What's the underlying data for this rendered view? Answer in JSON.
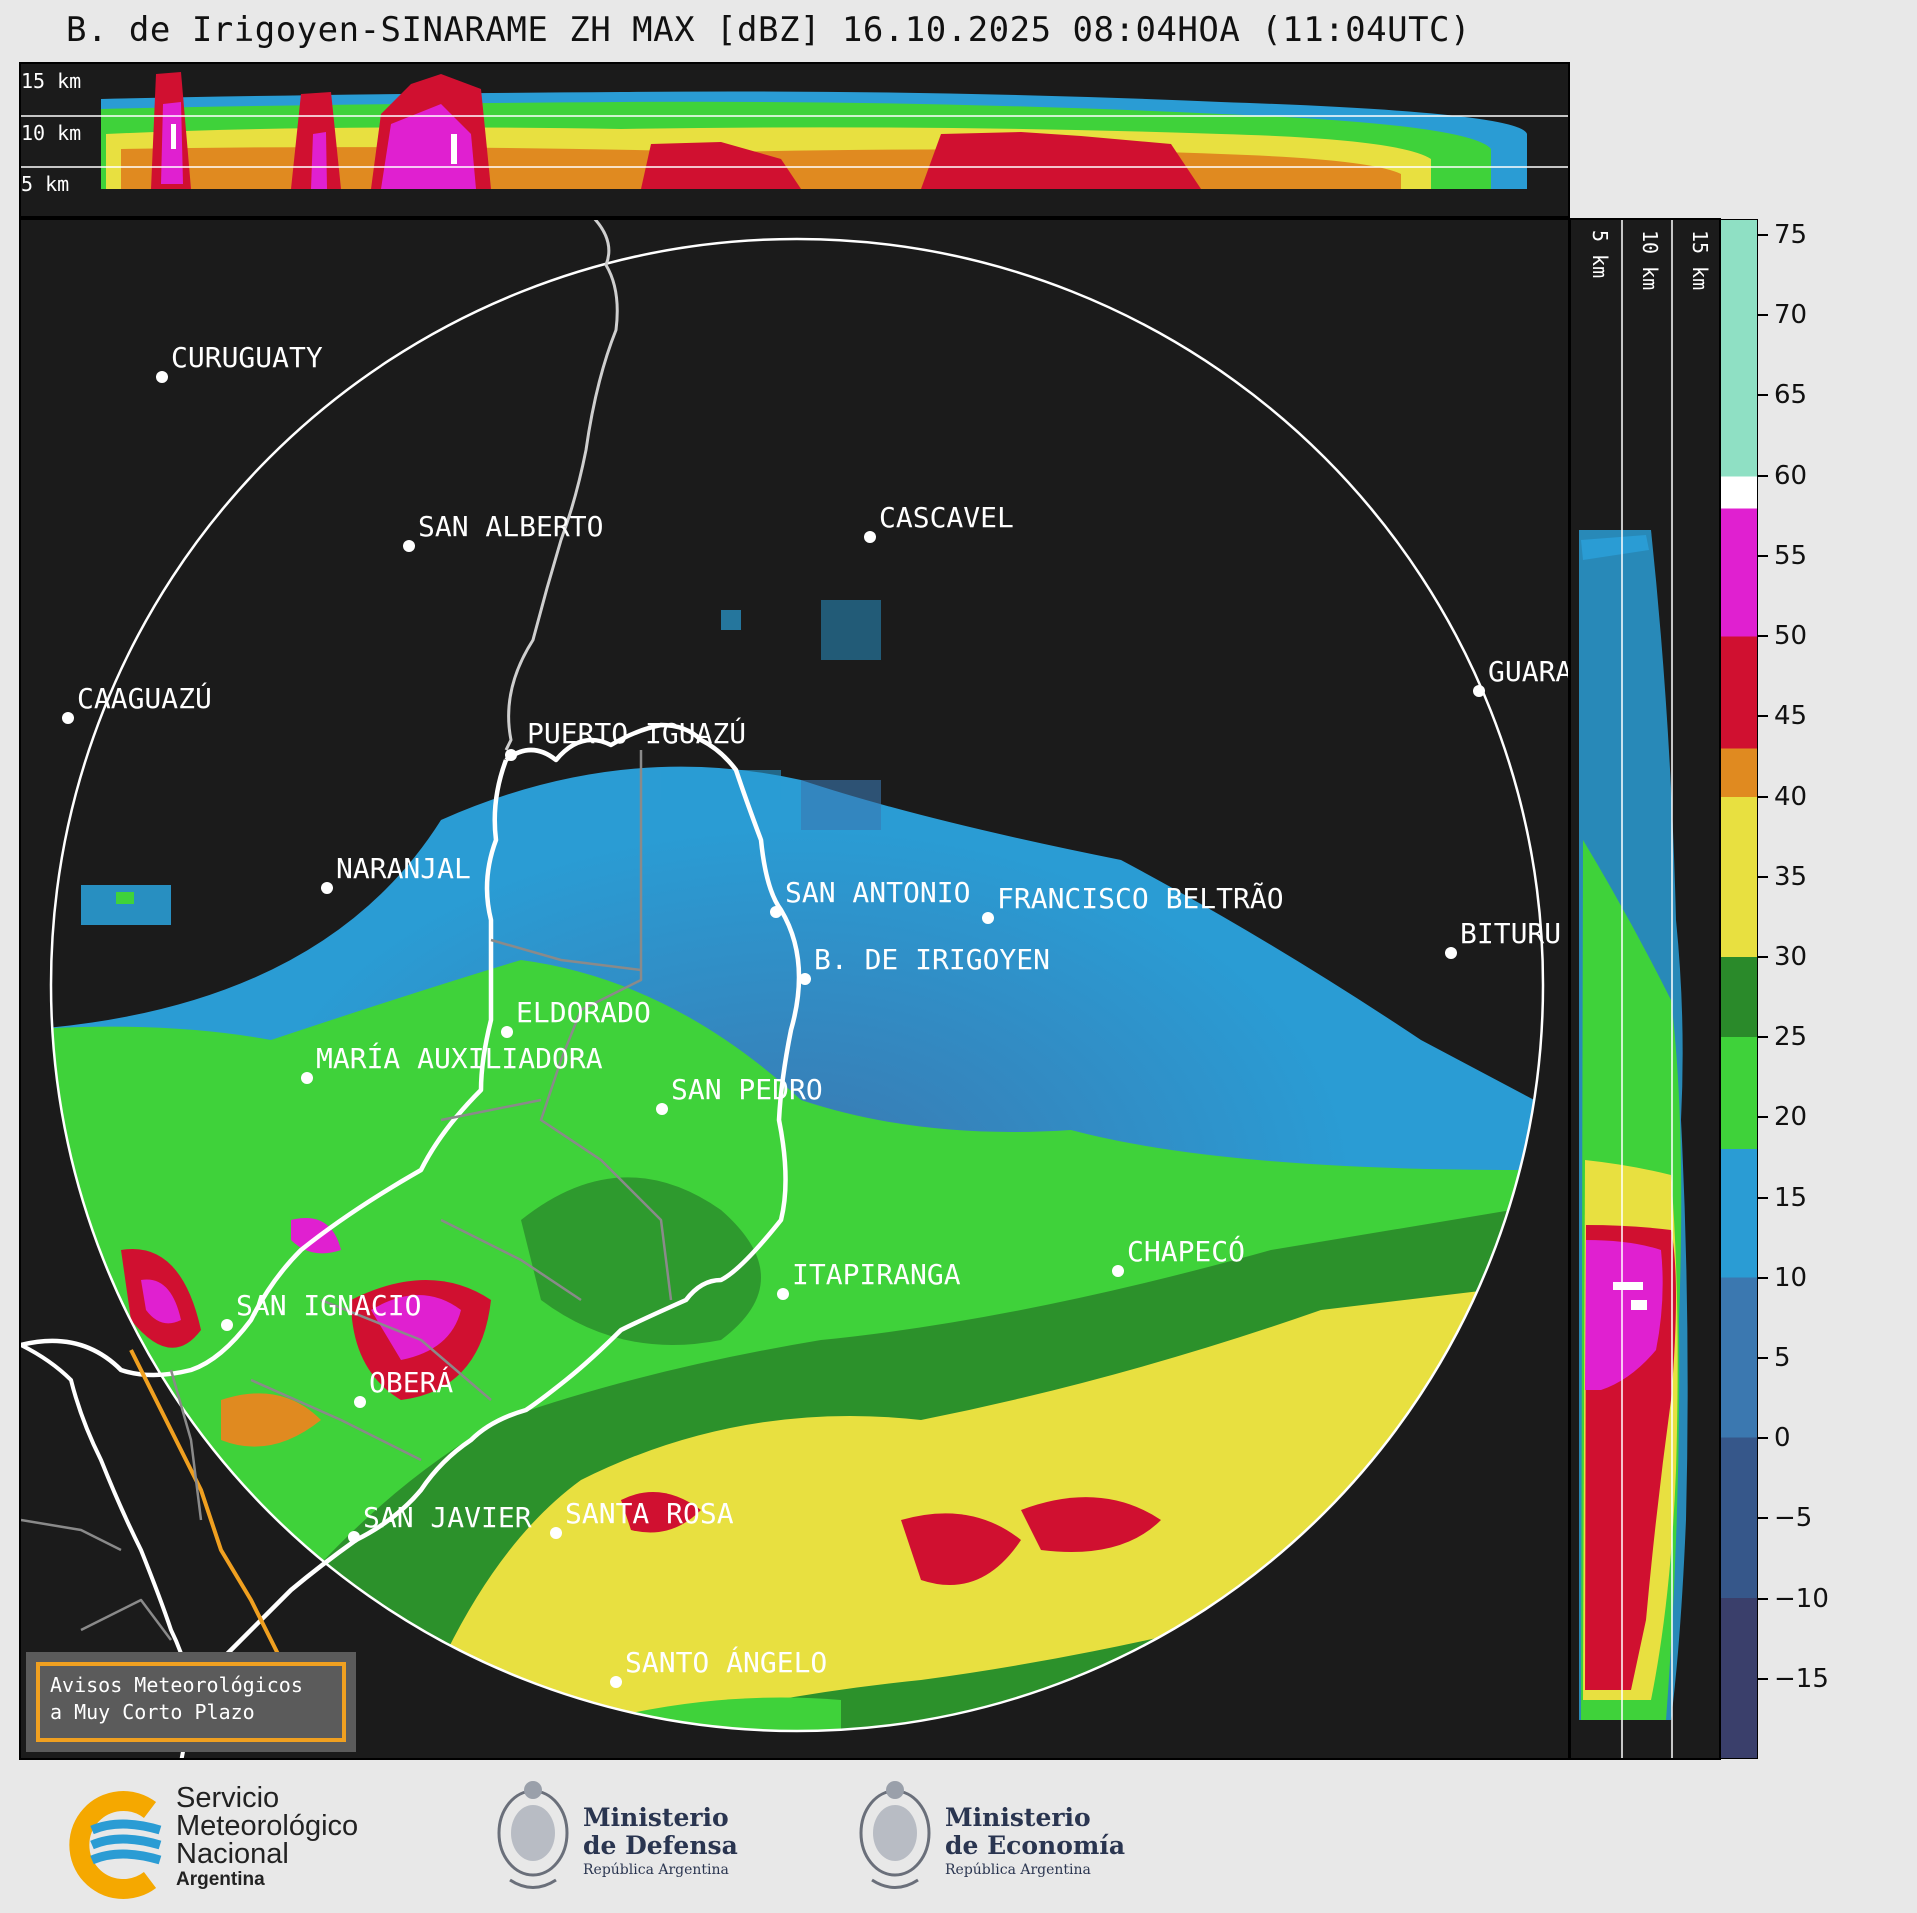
{
  "title": "B. de Irigoyen-SINARAME ZH MAX [dBZ] 16.10.2025 08:04HOA (11:04UTC)",
  "top_panel": {
    "height_labels": [
      "15 km",
      "10 km",
      "5 km"
    ]
  },
  "side_panel": {
    "height_labels": [
      "5 km",
      "10 km",
      "15 km"
    ]
  },
  "colorbar": {
    "ticks": [
      "75",
      "70",
      "65",
      "60",
      "55",
      "50",
      "45",
      "40",
      "35",
      "30",
      "25",
      "20",
      "15",
      "10",
      "5",
      "0",
      "−5",
      "−10",
      "−15"
    ],
    "tick_values": [
      75,
      70,
      65,
      60,
      55,
      50,
      45,
      40,
      35,
      30,
      25,
      20,
      15,
      10,
      5,
      0,
      -5,
      -10,
      -15
    ],
    "min": -20,
    "max": 76,
    "bands": [
      {
        "from": -20,
        "to": -10,
        "color": "#3a3f6b"
      },
      {
        "from": -10,
        "to": 0,
        "color": "#36578a"
      },
      {
        "from": 0,
        "to": 10,
        "color": "#3b78b0"
      },
      {
        "from": 10,
        "to": 18,
        "color": "#2a9cd4"
      },
      {
        "from": 18,
        "to": 25,
        "color": "#3fd23a"
      },
      {
        "from": 25,
        "to": 30,
        "color": "#2a8a2a"
      },
      {
        "from": 30,
        "to": 40,
        "color": "#e8e040"
      },
      {
        "from": 40,
        "to": 43,
        "color": "#e08a20"
      },
      {
        "from": 43,
        "to": 50,
        "color": "#d01030"
      },
      {
        "from": 50,
        "to": 58,
        "color": "#e020d0"
      },
      {
        "from": 58,
        "to": 60,
        "color": "#ffffff"
      },
      {
        "from": 60,
        "to": 76,
        "color": "#8fe0c4"
      }
    ]
  },
  "cities": [
    {
      "name": "CURUGUATY",
      "type": "city"
    },
    {
      "name": "SAN ALBERTO",
      "type": "city"
    },
    {
      "name": "CASCAVEL",
      "type": "city"
    },
    {
      "name": "CAAGUAZÚ",
      "type": "city"
    },
    {
      "name": "GUARA",
      "type": "city"
    },
    {
      "name": "PUERTO IGUAZÚ",
      "type": "city"
    },
    {
      "name": "NARANJAL",
      "type": "city"
    },
    {
      "name": "SAN ANTONIO",
      "type": "city"
    },
    {
      "name": "FRANCISCO BELTRÃO",
      "type": "city"
    },
    {
      "name": "B. DE IRIGOYEN",
      "type": "radar"
    },
    {
      "name": "BITURU",
      "type": "city"
    },
    {
      "name": "ELDORADO",
      "type": "city"
    },
    {
      "name": "MARÍA AUXILIADORA",
      "type": "city"
    },
    {
      "name": "SAN PEDRO",
      "type": "city"
    },
    {
      "name": "CHAPECÓ",
      "type": "city"
    },
    {
      "name": "ITAPIRANGA",
      "type": "city"
    },
    {
      "name": "SAN IGNACIO",
      "type": "city"
    },
    {
      "name": "OBERÁ",
      "type": "city"
    },
    {
      "name": "SAN JAVIER",
      "type": "city"
    },
    {
      "name": "SANTA ROSA",
      "type": "city"
    },
    {
      "name": "SANTO ÁNGELO",
      "type": "city"
    }
  ],
  "warning_box": {
    "line1": "Avisos Meteorológicos",
    "line2": "a Muy Corto Plazo"
  },
  "logos": {
    "smn": {
      "line1": "Servicio",
      "line2": "Meteorológico",
      "line3": "Nacional",
      "line4": "Argentina"
    },
    "defensa": {
      "line1": "Ministerio",
      "line2": "de Defensa",
      "line3": "República Argentina"
    },
    "economia": {
      "line1": "Ministerio",
      "line2": "de Economía",
      "line3": "República Argentina"
    }
  },
  "colors": {
    "background": "#1b1b1b",
    "page": "#e8e8e8",
    "warning_border": "#f0a020",
    "smn_blue": "#2a9cd4",
    "smn_orange": "#f5a800"
  }
}
